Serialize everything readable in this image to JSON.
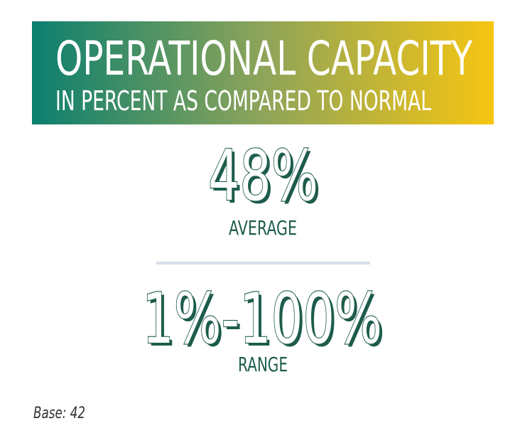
{
  "header": {
    "title": "OPERATIONAL CAPACITY",
    "subtitle": "IN PERCENT AS COMPARED TO NORMAL"
  },
  "stats": [
    {
      "value": "48%",
      "label": "AVERAGE"
    },
    {
      "value": "1%-100%",
      "label": "RANGE"
    }
  ],
  "footnote": "Base: 42"
}
